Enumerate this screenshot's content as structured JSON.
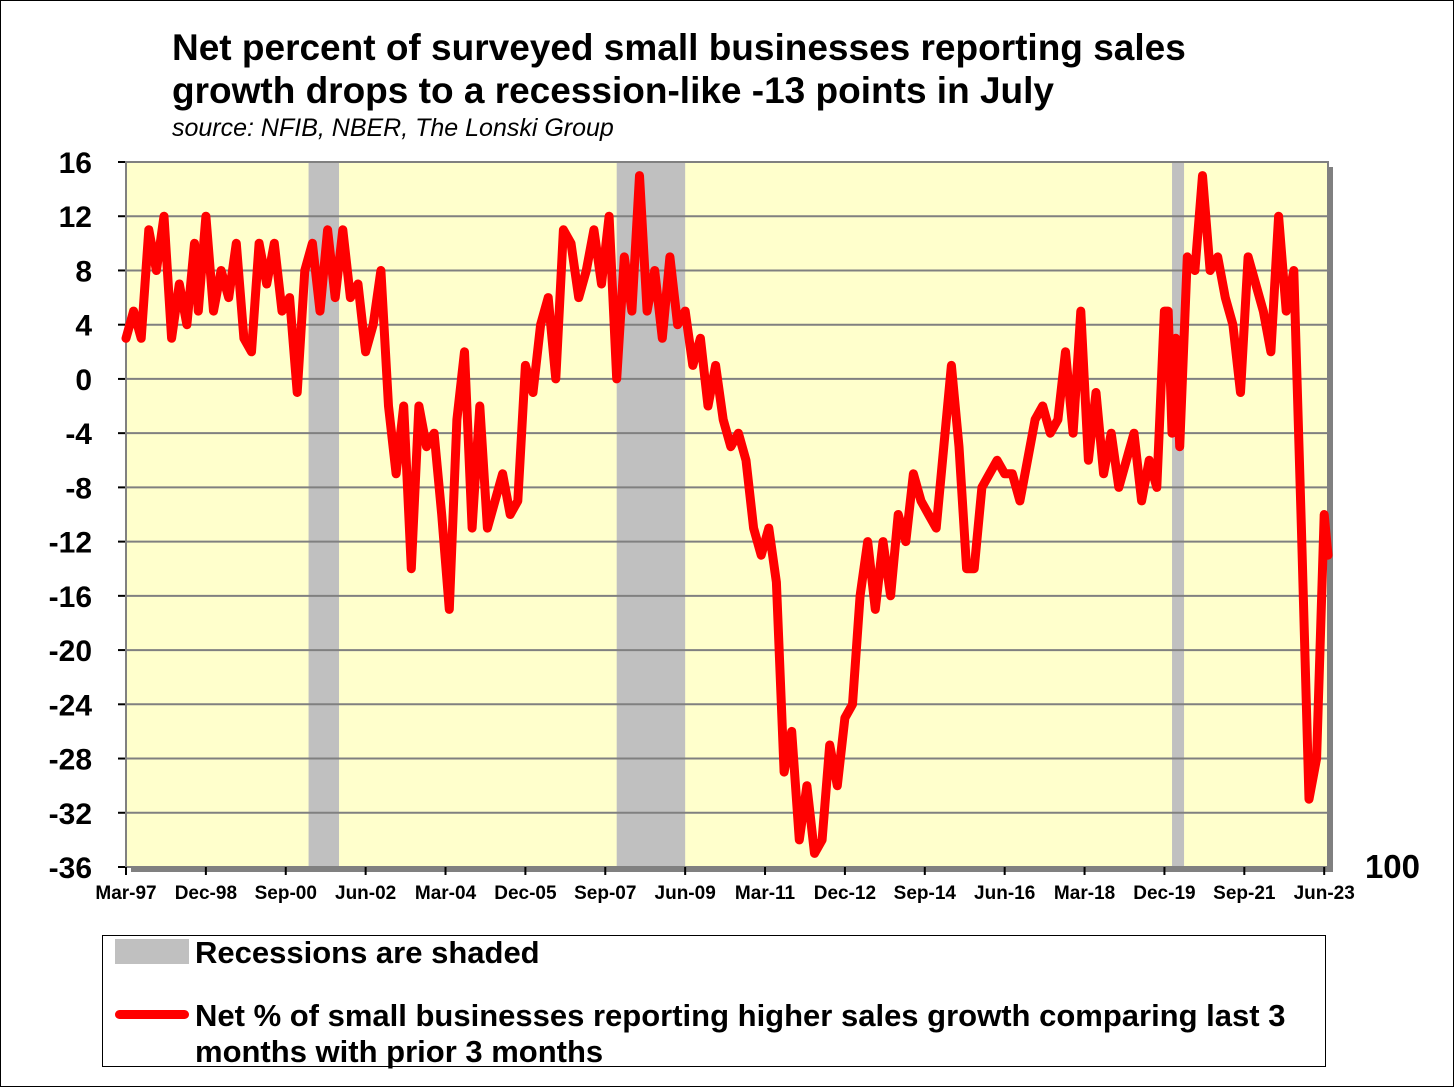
{
  "chart_data": {
    "type": "line",
    "title_line1": "Net percent of surveyed small businesses reporting sales",
    "title_line2": "growth drops to a recession-like -13 points in July",
    "subtitle": "source: NFIB, NBER, The Lonski Group",
    "ylim": [
      -36,
      16
    ],
    "y_ticks": [
      "16",
      "12",
      "8",
      "4",
      "0",
      "-4",
      "-8",
      "-12",
      "-16",
      "-20",
      "-24",
      "-28",
      "-32",
      "-36"
    ],
    "y2_label": "100",
    "x_range": [
      "1997-03",
      "2023-07"
    ],
    "x_tick_labels": [
      "Mar-97",
      "Dec-98",
      "Sep-00",
      "Jun-02",
      "Mar-04",
      "Dec-05",
      "Sep-07",
      "Jun-09",
      "Mar-11",
      "Dec-12",
      "Sep-14",
      "Jun-16",
      "Mar-18",
      "Dec-19",
      "Sep-21",
      "Jun-23"
    ],
    "grid": true,
    "colors": {
      "plot_bg": "#ffffcc",
      "recession": "#c0c0c0",
      "series": "#ff0000",
      "grid": "#808080"
    },
    "recessions": [
      {
        "start": "2001-03",
        "end": "2001-11"
      },
      {
        "start": "2007-12",
        "end": "2009-06"
      },
      {
        "start": "2020-02",
        "end": "2020-04"
      }
    ],
    "series": [
      {
        "name": "Net % of small businesses reporting higher sales growth comparing last 3 months with prior 3 months",
        "points": [
          [
            "1997-03",
            3
          ],
          [
            "1997-05",
            5
          ],
          [
            "1997-07",
            3
          ],
          [
            "1997-09",
            11
          ],
          [
            "1997-11",
            8
          ],
          [
            "1998-01",
            12
          ],
          [
            "1998-03",
            3
          ],
          [
            "1998-05",
            7
          ],
          [
            "1998-07",
            4
          ],
          [
            "1998-09",
            10
          ],
          [
            "1998-10",
            5
          ],
          [
            "1998-12",
            12
          ],
          [
            "1999-02",
            5
          ],
          [
            "1999-04",
            8
          ],
          [
            "1999-06",
            6
          ],
          [
            "1999-08",
            10
          ],
          [
            "1999-10",
            3
          ],
          [
            "1999-12",
            2
          ],
          [
            "2000-02",
            10
          ],
          [
            "2000-04",
            7
          ],
          [
            "2000-06",
            10
          ],
          [
            "2000-08",
            5
          ],
          [
            "2000-10",
            6
          ],
          [
            "2000-12",
            -1
          ],
          [
            "2001-02",
            8
          ],
          [
            "2001-04",
            10
          ],
          [
            "2001-06",
            5
          ],
          [
            "2001-08",
            11
          ],
          [
            "2001-10",
            6
          ],
          [
            "2001-12",
            11
          ],
          [
            "2002-02",
            6
          ],
          [
            "2002-04",
            7
          ],
          [
            "2002-06",
            2
          ],
          [
            "2002-08",
            4
          ],
          [
            "2002-10",
            8
          ],
          [
            "2002-12",
            -2
          ],
          [
            "2003-02",
            -7
          ],
          [
            "2003-04",
            -2
          ],
          [
            "2003-06",
            -14
          ],
          [
            "2003-08",
            -2
          ],
          [
            "2003-10",
            -5
          ],
          [
            "2003-12",
            -4
          ],
          [
            "2004-02",
            -10
          ],
          [
            "2004-04",
            -17
          ],
          [
            "2004-06",
            -3
          ],
          [
            "2004-08",
            2
          ],
          [
            "2004-10",
            -11
          ],
          [
            "2004-12",
            -2
          ],
          [
            "2005-02",
            -11
          ],
          [
            "2005-04",
            -9
          ],
          [
            "2005-06",
            -7
          ],
          [
            "2005-08",
            -10
          ],
          [
            "2005-10",
            -9
          ],
          [
            "2005-12",
            1
          ],
          [
            "2006-02",
            -1
          ],
          [
            "2006-04",
            4
          ],
          [
            "2006-06",
            6
          ],
          [
            "2006-08",
            0
          ],
          [
            "2006-10",
            11
          ],
          [
            "2006-12",
            10
          ],
          [
            "2007-02",
            6
          ],
          [
            "2007-04",
            8
          ],
          [
            "2007-06",
            11
          ],
          [
            "2007-08",
            7
          ],
          [
            "2007-10",
            12
          ],
          [
            "2007-12",
            0
          ],
          [
            "2008-02",
            9
          ],
          [
            "2008-04",
            5
          ],
          [
            "2008-06",
            15
          ],
          [
            "2008-08",
            5
          ],
          [
            "2008-10",
            8
          ],
          [
            "2008-12",
            3
          ],
          [
            "2009-02",
            9
          ],
          [
            "2009-04",
            4
          ],
          [
            "2009-06",
            5
          ],
          [
            "2009-08",
            1
          ],
          [
            "2009-10",
            3
          ],
          [
            "2009-12",
            -2
          ],
          [
            "2010-02",
            1
          ],
          [
            "2010-04",
            -3
          ],
          [
            "2010-06",
            -5
          ],
          [
            "2010-08",
            -4
          ],
          [
            "2010-10",
            -6
          ],
          [
            "2010-12",
            -11
          ],
          [
            "2011-02",
            -13
          ],
          [
            "2011-04",
            -11
          ],
          [
            "2011-06",
            -15
          ],
          [
            "2011-08",
            -29
          ],
          [
            "2011-10",
            -26
          ],
          [
            "2011-12",
            -34
          ],
          [
            "2012-02",
            -30
          ],
          [
            "2012-04",
            -35
          ],
          [
            "2012-06",
            -34
          ],
          [
            "2012-08",
            -27
          ],
          [
            "2012-10",
            -30
          ],
          [
            "2012-12",
            -25
          ],
          [
            "2013-02",
            -24
          ],
          [
            "2013-04",
            -16
          ],
          [
            "2013-06",
            -12
          ],
          [
            "2013-08",
            -17
          ],
          [
            "2013-10",
            -12
          ],
          [
            "2013-12",
            -16
          ],
          [
            "2014-02",
            -10
          ],
          [
            "2014-04",
            -12
          ],
          [
            "2014-06",
            -7
          ],
          [
            "2014-08",
            -9
          ],
          [
            "2014-10",
            -10
          ],
          [
            "2014-12",
            -11
          ],
          [
            "2015-02",
            -5
          ],
          [
            "2015-04",
            1
          ],
          [
            "2015-06",
            -5
          ],
          [
            "2015-08",
            -14
          ],
          [
            "2015-10",
            -14
          ],
          [
            "2015-12",
            -8
          ],
          [
            "2016-02",
            -7
          ],
          [
            "2016-04",
            -6
          ],
          [
            "2016-06",
            -7
          ],
          [
            "2016-08",
            -7
          ],
          [
            "2016-10",
            -9
          ],
          [
            "2016-12",
            -6
          ],
          [
            "2017-02",
            -3
          ],
          [
            "2017-04",
            -2
          ],
          [
            "2017-06",
            -4
          ],
          [
            "2017-08",
            -3
          ],
          [
            "2017-10",
            2
          ],
          [
            "2017-12",
            -4
          ],
          [
            "2018-02",
            5
          ],
          [
            "2018-04",
            -6
          ],
          [
            "2018-06",
            -1
          ],
          [
            "2018-08",
            -7
          ],
          [
            "2018-10",
            -4
          ],
          [
            "2018-12",
            -8
          ],
          [
            "2019-02",
            -6
          ],
          [
            "2019-04",
            -4
          ],
          [
            "2019-06",
            -9
          ],
          [
            "2019-08",
            -6
          ],
          [
            "2019-10",
            -8
          ],
          [
            "2019-12",
            5
          ],
          [
            "2020-01",
            5
          ],
          [
            "2020-02",
            -4
          ],
          [
            "2020-03",
            3
          ],
          [
            "2020-04",
            -5
          ],
          [
            "2020-06",
            9
          ],
          [
            "2020-08",
            8
          ],
          [
            "2020-10",
            15
          ],
          [
            "2020-12",
            8
          ],
          [
            "2021-02",
            9
          ],
          [
            "2021-04",
            6
          ],
          [
            "2021-06",
            4
          ],
          [
            "2021-08",
            -1
          ],
          [
            "2021-10",
            9
          ],
          [
            "2021-12",
            7
          ],
          [
            "2022-02",
            5
          ],
          [
            "2022-04",
            2
          ],
          [
            "2022-06",
            12
          ],
          [
            "2022-08",
            5
          ],
          [
            "2022-10",
            8
          ],
          [
            "2022-12",
            -11
          ],
          [
            "2023-02",
            -31
          ],
          [
            "2023-04",
            -28
          ],
          [
            "2023-06",
            -10
          ],
          [
            "2023-07",
            -13
          ]
        ]
      }
    ]
  },
  "legend": {
    "recession_label": "Recessions are shaded",
    "series_label": "Net % of small businesses reporting higher sales growth comparing last 3 months with prior 3 months"
  }
}
